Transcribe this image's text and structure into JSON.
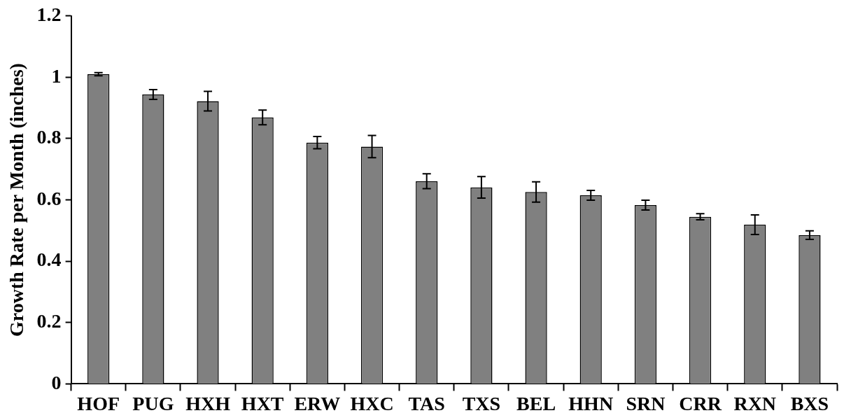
{
  "chart_data": {
    "type": "bar",
    "ylabel": "Growth Rate per Month (inches)",
    "categories": [
      "HOF",
      "PUG",
      "HXH",
      "HXT",
      "ERW",
      "HXC",
      "TAS",
      "TXS",
      "BEL",
      "HHN",
      "SRN",
      "CRR",
      "RXN",
      "BXS"
    ],
    "values": [
      1.01,
      0.944,
      0.922,
      0.869,
      0.787,
      0.774,
      0.661,
      0.641,
      0.626,
      0.615,
      0.583,
      0.545,
      0.519,
      0.485
    ],
    "errors": [
      0.005,
      0.016,
      0.032,
      0.024,
      0.02,
      0.036,
      0.024,
      0.035,
      0.033,
      0.016,
      0.016,
      0.01,
      0.032,
      0.014
    ],
    "color": "#808080",
    "ylim": [
      0,
      1.2
    ],
    "yticks": [
      0,
      0.2,
      0.4,
      0.6,
      0.8,
      1,
      1.2
    ],
    "grid": false,
    "legend": false
  }
}
